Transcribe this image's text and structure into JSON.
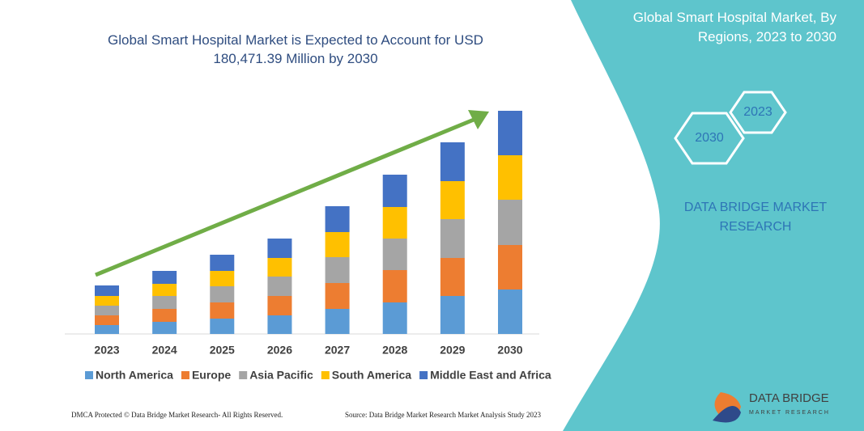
{
  "chart_data": {
    "type": "bar",
    "stacked": true,
    "title": "Global Smart Hospital Market is Expected to Account for USD 180,471.39 Million by 2030",
    "categories": [
      "2023",
      "2024",
      "2025",
      "2026",
      "2027",
      "2028",
      "2029",
      "2030"
    ],
    "series": [
      {
        "name": "North America",
        "color": "#5b9bd5",
        "values": [
          11,
          15,
          19,
          23,
          31,
          39,
          47,
          55
        ]
      },
      {
        "name": "Europe",
        "color": "#ed7d31",
        "values": [
          12,
          16,
          20,
          24,
          32,
          40,
          47,
          55
        ]
      },
      {
        "name": "Asia Pacific",
        "color": "#a5a5a5",
        "values": [
          12,
          16,
          20,
          24,
          32,
          39,
          48,
          56
        ]
      },
      {
        "name": "South America",
        "color": "#ffc000",
        "values": [
          12,
          15,
          19,
          23,
          31,
          39,
          47,
          55
        ]
      },
      {
        "name": "Middle East and Africa",
        "color": "#4472c4",
        "values": [
          13,
          16,
          20,
          24,
          32,
          40,
          48,
          55
        ]
      }
    ],
    "ylim": [
      0,
      276
    ]
  },
  "panel": {
    "title": "Global Smart Hospital Market, By Regions, 2023 to 2030",
    "hex_start": "2023",
    "hex_end": "2030",
    "brand": "DATA BRIDGE MARKET RESEARCH",
    "logo_name": "DATA BRIDGE",
    "logo_sub": "MARKET RESEARCH"
  },
  "footer": {
    "left": "DMCA Protected © Data Bridge Market Research- All Rights Reserved.",
    "right": "Source: Data Bridge Market Research Market Analysis Study 2023"
  }
}
